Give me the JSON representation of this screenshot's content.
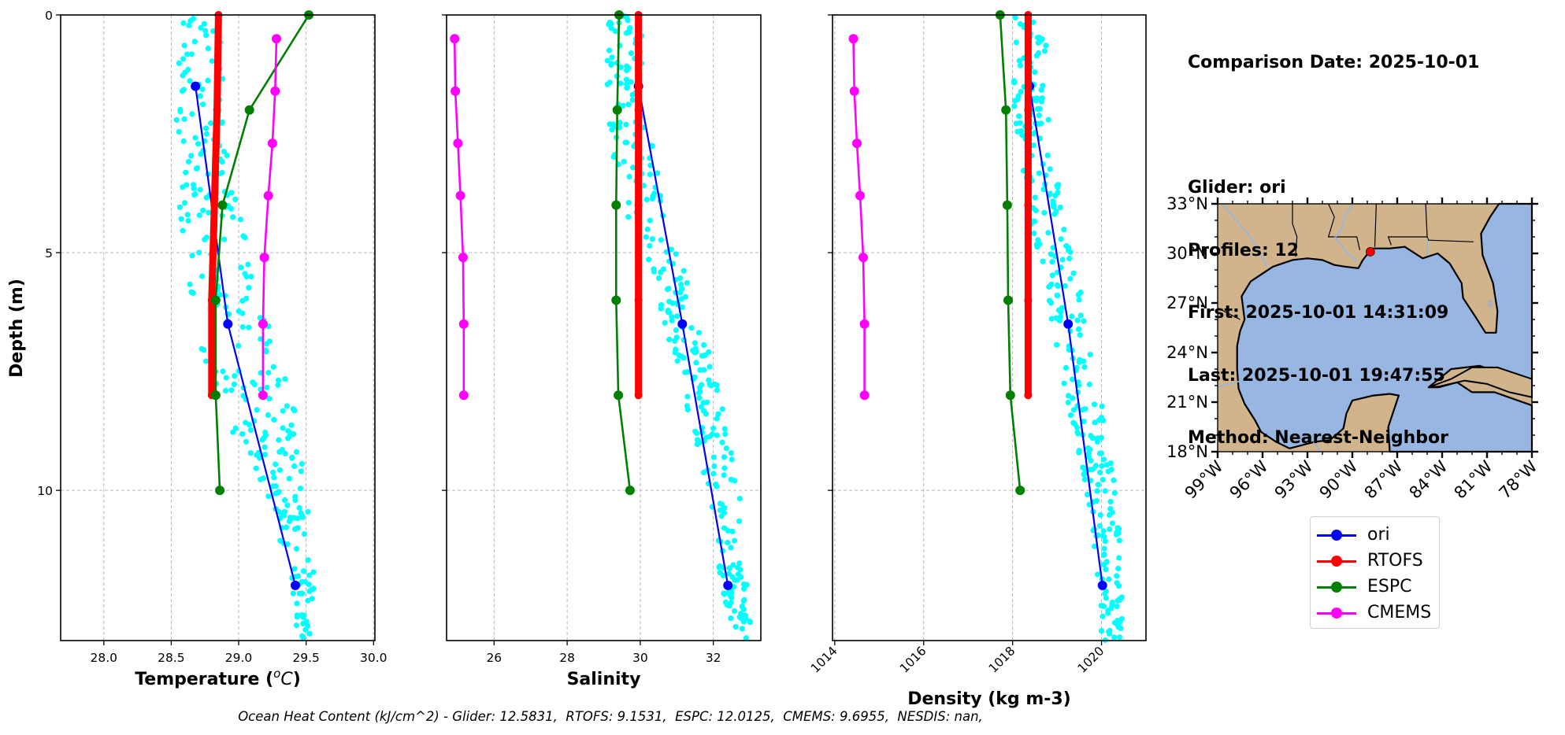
{
  "chart_data": [
    {
      "type": "line",
      "id": "temperature",
      "title": "",
      "xlabel": "Temperature (°C)",
      "ylabel": "Depth (m)",
      "xlim": [
        27.68,
        30.01
      ],
      "ylim": [
        13.16,
        0
      ],
      "y_inverted": true,
      "grid": true,
      "xticks": [
        28.0,
        28.5,
        29.0,
        29.5,
        30.0
      ],
      "xtick_labels": [
        "28.0",
        "28.5",
        "29.0",
        "29.5",
        "30.0"
      ],
      "yticks": [
        0,
        5,
        10
      ],
      "ytick_labels": [
        "0",
        "5",
        "10"
      ],
      "series": [
        {
          "name": "ori",
          "color": "#0000ff",
          "x": [
            28.68,
            28.92,
            29.42
          ],
          "y": [
            1.5,
            6.5,
            12.0
          ]
        },
        {
          "name": "RTOFS",
          "color": "#ff0000",
          "x": [
            28.85,
            28.84,
            28.82,
            28.8,
            28.8
          ],
          "y": [
            0,
            2.0,
            4.0,
            6.0,
            8.0
          ]
        },
        {
          "name": "ESPC",
          "color": "#008000",
          "x": [
            29.52,
            29.08,
            28.88,
            28.83,
            28.83,
            28.86
          ],
          "y": [
            0,
            2.0,
            4.0,
            6.0,
            8.0,
            10.0
          ]
        },
        {
          "name": "CMEMS",
          "color": "#ff00ff",
          "x": [
            29.28,
            29.27,
            29.25,
            29.22,
            29.19,
            29.18,
            29.18
          ],
          "y": [
            0.5,
            1.6,
            2.7,
            3.8,
            5.1,
            6.5,
            8.0
          ]
        }
      ],
      "scatter_band": {
        "name": "glider observations",
        "color": "#00ffff",
        "center": [
          [
            0,
            28.7
          ],
          [
            2,
            28.72
          ],
          [
            4,
            28.78
          ],
          [
            6,
            28.9
          ],
          [
            8,
            29.1
          ],
          [
            10,
            29.35
          ],
          [
            12,
            29.48
          ],
          [
            13,
            29.48
          ]
        ],
        "spread": [
          [
            0,
            0.15
          ],
          [
            4,
            0.22
          ],
          [
            8,
            0.3
          ],
          [
            10,
            0.15
          ],
          [
            13,
            0.05
          ]
        ]
      }
    },
    {
      "type": "line",
      "id": "salinity",
      "xlabel": "Salinity",
      "ylabel": "",
      "xlim": [
        24.7,
        33.3
      ],
      "ylim": [
        13.16,
        0
      ],
      "y_inverted": true,
      "grid": true,
      "xticks": [
        26,
        28,
        30,
        32
      ],
      "xtick_labels": [
        "26",
        "28",
        "30",
        "32"
      ],
      "yticks": [
        0,
        5,
        10
      ],
      "ytick_labels": [
        "",
        "",
        ""
      ],
      "series": [
        {
          "name": "ori",
          "color": "#0000ff",
          "x": [
            29.95,
            31.15,
            32.4
          ],
          "y": [
            1.5,
            6.5,
            12.0
          ]
        },
        {
          "name": "RTOFS",
          "color": "#ff0000",
          "x": [
            29.95,
            29.95,
            29.95,
            29.95,
            29.95
          ],
          "y": [
            0,
            2.0,
            4.0,
            6.0,
            8.0
          ]
        },
        {
          "name": "ESPC",
          "color": "#008000",
          "x": [
            29.42,
            29.37,
            29.34,
            29.34,
            29.4,
            29.72
          ],
          "y": [
            0,
            2.0,
            4.0,
            6.0,
            8.0,
            10.0
          ]
        },
        {
          "name": "CMEMS",
          "color": "#ff00ff",
          "x": [
            24.92,
            24.94,
            25.01,
            25.08,
            25.15,
            25.17,
            25.17
          ],
          "y": [
            0.5,
            1.6,
            2.7,
            3.8,
            5.1,
            6.5,
            8.0
          ]
        }
      ],
      "scatter_band": {
        "name": "glider observations",
        "color": "#00ffff",
        "center": [
          [
            0,
            29.6
          ],
          [
            2,
            29.6
          ],
          [
            4,
            30.1
          ],
          [
            6,
            31.0
          ],
          [
            8,
            31.7
          ],
          [
            10,
            32.3
          ],
          [
            12,
            32.6
          ],
          [
            13,
            32.7
          ]
        ],
        "spread": [
          [
            0,
            0.5
          ],
          [
            4,
            0.6
          ],
          [
            8,
            0.5
          ],
          [
            13,
            0.35
          ]
        ]
      }
    },
    {
      "type": "line",
      "id": "density",
      "xlabel": "Density (kg m-3)",
      "ylabel": "",
      "xlim": [
        1013.95,
        1021.0
      ],
      "ylim": [
        13.16,
        0
      ],
      "y_inverted": true,
      "grid": true,
      "xticks": [
        1014,
        1016,
        1018,
        1020
      ],
      "xtick_labels": [
        "1014",
        "1016",
        "1018",
        "1020"
      ],
      "xtick_rotation": 45,
      "yticks": [
        0,
        5,
        10
      ],
      "ytick_labels": [
        "",
        "",
        ""
      ],
      "series": [
        {
          "name": "ori",
          "color": "#0000ff",
          "x": [
            1018.38,
            1019.25,
            1020.02
          ],
          "y": [
            1.5,
            6.5,
            12.0
          ]
        },
        {
          "name": "RTOFS",
          "color": "#ff0000",
          "x": [
            1018.35,
            1018.35,
            1018.35,
            1018.35,
            1018.35
          ],
          "y": [
            0,
            2.0,
            4.0,
            6.0,
            8.0
          ]
        },
        {
          "name": "ESPC",
          "color": "#008000",
          "x": [
            1017.72,
            1017.85,
            1017.88,
            1017.9,
            1017.95,
            1018.17
          ],
          "y": [
            0,
            2.0,
            4.0,
            6.0,
            8.0,
            10.0
          ]
        },
        {
          "name": "CMEMS",
          "color": "#ff00ff",
          "x": [
            1014.42,
            1014.44,
            1014.5,
            1014.57,
            1014.64,
            1014.67,
            1014.67
          ],
          "y": [
            0.5,
            1.6,
            2.7,
            3.8,
            5.1,
            6.5,
            8.0
          ]
        }
      ],
      "scatter_band": {
        "name": "glider observations",
        "color": "#00ffff",
        "center": [
          [
            0,
            1018.4
          ],
          [
            2,
            1018.4
          ],
          [
            4,
            1018.7
          ],
          [
            6,
            1019.2
          ],
          [
            8,
            1019.6
          ],
          [
            10,
            1020.0
          ],
          [
            12,
            1020.2
          ],
          [
            13,
            1020.25
          ]
        ],
        "spread": [
          [
            0,
            0.35
          ],
          [
            4,
            0.4
          ],
          [
            8,
            0.4
          ],
          [
            13,
            0.25
          ]
        ]
      }
    },
    {
      "type": "map",
      "id": "location-map",
      "region": "Gulf of Mexico",
      "lon_range": [
        -99,
        -78
      ],
      "lat_range": [
        18,
        33
      ],
      "xticks": [
        -99,
        -96,
        -93,
        -90,
        -87,
        -84,
        -81,
        -78
      ],
      "xtick_labels": [
        "99°W",
        "96°W",
        "93°W",
        "90°W",
        "87°W",
        "84°W",
        "81°W",
        "78°W"
      ],
      "yticks": [
        18,
        21,
        24,
        27,
        30,
        33
      ],
      "ytick_labels": [
        "18°N",
        "21°N",
        "24°N",
        "27°N",
        "30°N",
        "33°N"
      ],
      "land_color": "#d2b48c",
      "ocean_color": "#97b6e1",
      "marker": {
        "name": "glider location",
        "lon": -88.8,
        "lat": 30.1,
        "color": "#ff0000"
      }
    }
  ],
  "info": {
    "comparison_date": "Comparison Date: 2025-10-01",
    "glider": "Glider: ori",
    "profiles": "Profiles: 12",
    "first": "First: 2025-10-01 14:31:09",
    "last": "Last: 2025-10-01 19:47:55",
    "method": "Method: Nearest-Neighbor"
  },
  "legend": [
    {
      "label": "ori",
      "color": "#0000ff"
    },
    {
      "label": "RTOFS",
      "color": "#ff0000"
    },
    {
      "label": "ESPC",
      "color": "#008000"
    },
    {
      "label": "CMEMS",
      "color": "#ff00ff"
    }
  ],
  "footer": "Ocean Heat Content (kJ/cm^2) - Glider: 12.5831,  RTOFS: 9.1531,  ESPC: 12.0125,  CMEMS: 9.6955,  NESDIS: nan,"
}
